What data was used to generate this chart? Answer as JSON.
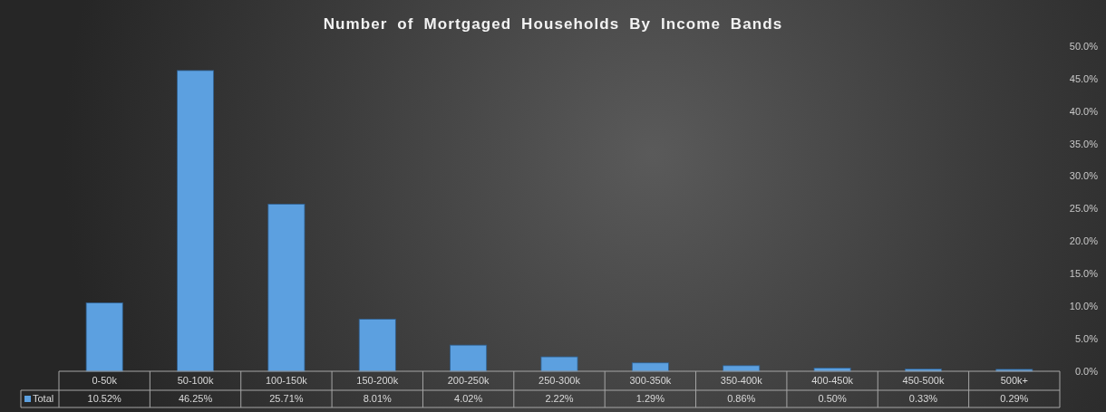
{
  "chart_data": {
    "type": "bar",
    "title": "Number of Mortgaged Households By Income Bands",
    "categories": [
      "0-50k",
      "50-100k",
      "100-150k",
      "150-200k",
      "200-250k",
      "250-300k",
      "300-350k",
      "350-400k",
      "400-450k",
      "450-500k",
      "500k+"
    ],
    "series": [
      {
        "name": "Total",
        "color": "#5ca0e0",
        "values": [
          10.52,
          46.25,
          25.71,
          8.01,
          4.02,
          2.22,
          1.29,
          0.86,
          0.5,
          0.33,
          0.29
        ],
        "value_labels": [
          "10.52%",
          "46.25%",
          "25.71%",
          "8.01%",
          "4.02%",
          "2.22%",
          "1.29%",
          "0.86%",
          "0.50%",
          "0.33%",
          "0.29%"
        ]
      }
    ],
    "ylim": [
      0,
      50
    ],
    "yticks": [
      {
        "value": 0,
        "label": "0.0%"
      },
      {
        "value": 5,
        "label": "5.0%"
      },
      {
        "value": 10,
        "label": "10.0%"
      },
      {
        "value": 15,
        "label": "15.0%"
      },
      {
        "value": 20,
        "label": "20.0%"
      },
      {
        "value": 25,
        "label": "25.0%"
      },
      {
        "value": 30,
        "label": "30.0%"
      },
      {
        "value": 35,
        "label": "35.0%"
      },
      {
        "value": 40,
        "label": "40.0%"
      },
      {
        "value": 45,
        "label": "45.0%"
      },
      {
        "value": 50,
        "label": "50.0%"
      }
    ],
    "legend": "bottom left"
  }
}
